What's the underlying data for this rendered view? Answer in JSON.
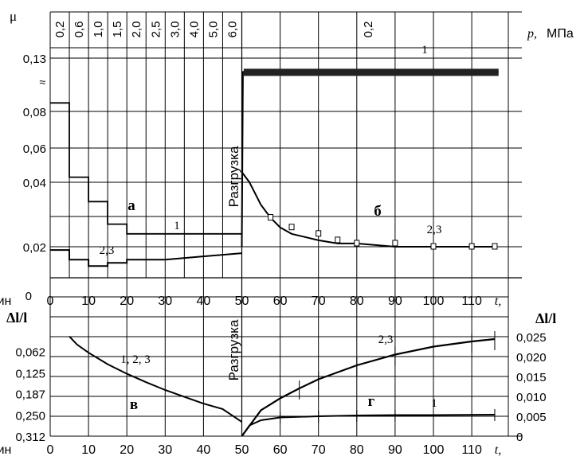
{
  "chart_data": [
    {
      "panel": "a",
      "type": "line",
      "y_axis_symbol": "μ",
      "xlim": [
        0,
        50
      ],
      "ylim": [
        0,
        0.13
      ],
      "y_ticks": [
        "0,13",
        "0,08",
        "0,06",
        "0,04",
        "0,02"
      ],
      "y_break_symbol": "≈",
      "pressure_label": "p, МПа",
      "pressure_stages": [
        {
          "p": "0,2",
          "from": 0,
          "to": 5
        },
        {
          "p": "0,6",
          "from": 5,
          "to": 10
        },
        {
          "p": "1,0",
          "from": 10,
          "to": 15
        },
        {
          "p": "1,5",
          "from": 15,
          "to": 20
        },
        {
          "p": "2,0",
          "from": 20,
          "to": 25
        },
        {
          "p": "2,5",
          "from": 25,
          "to": 30
        },
        {
          "p": "3,0",
          "from": 30,
          "to": 35
        },
        {
          "p": "4,0",
          "from": 35,
          "to": 40
        },
        {
          "p": "5,0",
          "from": 40,
          "to": 45
        },
        {
          "p": "6,0",
          "from": 45,
          "to": 50
        }
      ],
      "series": [
        {
          "name": "1",
          "x": [
            0,
            5,
            5,
            10,
            10,
            15,
            15,
            20,
            20,
            50
          ],
          "y": [
            0.088,
            0.088,
            0.043,
            0.043,
            0.034,
            0.034,
            0.027,
            0.027,
            0.024,
            0.024
          ]
        },
        {
          "name": "2,3",
          "x": [
            0,
            5,
            5,
            10,
            10,
            15,
            15,
            20,
            20,
            30,
            50
          ],
          "y": [
            0.019,
            0.019,
            0.016,
            0.016,
            0.014,
            0.014,
            0.015,
            0.015,
            0.016,
            0.016,
            0.018
          ]
        }
      ],
      "annotations": [
        "а",
        "1",
        "2,3"
      ]
    },
    {
      "panel": "б",
      "type": "line",
      "xlim": [
        50,
        117
      ],
      "pressure_stage": "0,2",
      "unload_label": "Разгрузка",
      "series": [
        {
          "name": "1",
          "x": [
            50,
            50.3,
            117
          ],
          "y": [
            0.02,
            0.117,
            0.117
          ]
        },
        {
          "name": "2,3",
          "x": [
            50,
            52,
            55,
            57.5,
            60,
            63,
            70,
            75,
            80,
            90,
            100,
            110,
            116
          ],
          "y": [
            0.046,
            0.04,
            0.033,
            0.029,
            0.026,
            0.024,
            0.022,
            0.021,
            0.021,
            0.02,
            0.02,
            0.02,
            0.02
          ]
        }
      ],
      "annotations": [
        "б",
        "1",
        "2,3"
      ]
    },
    {
      "panel": "в",
      "type": "line",
      "y_axis_symbol": "Δl/l",
      "xlim": [
        0,
        50
      ],
      "ylim": [
        0.312,
        0
      ],
      "y_ticks": [
        "0,062",
        "0,125",
        "0,187",
        "0,250",
        "0,312"
      ],
      "series": [
        {
          "name": "1, 2, 3",
          "x": [
            5,
            7,
            10,
            15,
            20,
            25,
            30,
            35,
            40,
            45,
            50
          ],
          "y": [
            0.018,
            0.042,
            0.066,
            0.1,
            0.128,
            0.153,
            0.176,
            0.196,
            0.216,
            0.232,
            0.27
          ]
        }
      ],
      "annotations": [
        "в",
        "1, 2, 3"
      ]
    },
    {
      "panel": "г",
      "type": "line",
      "y_axis_symbol": "Δl/l",
      "xlim": [
        50,
        117
      ],
      "ylim": [
        0,
        0.028
      ],
      "y_ticks": [
        "0,025",
        "0,020",
        "0,015",
        "0,010",
        "0,005",
        "0"
      ],
      "unload_label": "Разгрузка",
      "series": [
        {
          "name": "2,3",
          "x": [
            50,
            55,
            60,
            65,
            70,
            80,
            90,
            100,
            110,
            116
          ],
          "y": [
            0,
            0.0065,
            0.0095,
            0.012,
            0.0143,
            0.0178,
            0.0205,
            0.0225,
            0.0238,
            0.0244
          ]
        },
        {
          "name": "1",
          "x": [
            50,
            52,
            55,
            60,
            70,
            80,
            90,
            100,
            116
          ],
          "y": [
            0,
            0.0027,
            0.004,
            0.0047,
            0.005,
            0.0052,
            0.0053,
            0.0053,
            0.0054
          ]
        }
      ],
      "annotations": [
        "г",
        "1",
        "2,3"
      ]
    }
  ],
  "x_ticks_top": [
    "0",
    "10",
    "20",
    "30",
    "40",
    "50",
    "60",
    "70",
    "80",
    "90",
    "100",
    "110",
    "t,",
    "мин"
  ],
  "x_ticks_bottom": [
    "0",
    "10",
    "20",
    "30",
    "40",
    "50",
    "60",
    "70",
    "80",
    "90",
    "100",
    "110",
    "t,",
    "мин"
  ]
}
